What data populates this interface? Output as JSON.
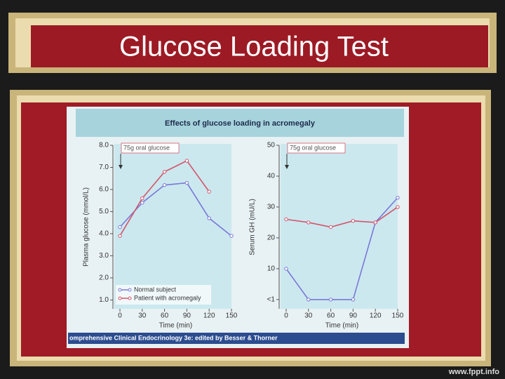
{
  "slide": {
    "title": "Glucose Loading Test",
    "figure_title": "Effects of glucose loading in acromegaly",
    "source": "omprehensive Clinical Endocrinology 3e: edited by Besser & Thorner",
    "watermark": "www.fppt.info"
  },
  "chart_data": [
    {
      "type": "line",
      "annotation": "75g oral glucose",
      "x_label": "Time (min)",
      "y_label": "Plasma glucose (mmol/L)",
      "x": [
        0,
        30,
        60,
        90,
        120,
        150
      ],
      "xlim": [
        0,
        150
      ],
      "xticks": [
        0,
        30,
        60,
        90,
        120,
        150
      ],
      "ylim": [
        0.6,
        8.0
      ],
      "yticks": [
        {
          "value": 1,
          "label": "1.0"
        },
        {
          "value": 2,
          "label": "2.0"
        },
        {
          "value": 3,
          "label": "3.0"
        },
        {
          "value": 4,
          "label": "4.0"
        },
        {
          "value": 5,
          "label": "5.0"
        },
        {
          "value": 6,
          "label": "6.0"
        },
        {
          "value": 7,
          "label": "7.0"
        },
        {
          "value": 8,
          "label": "8.0"
        }
      ],
      "legend": "lower left",
      "series": [
        {
          "name": "Normal subject",
          "color": "#7a78d6",
          "values": [
            4.3,
            5.4,
            6.2,
            6.3,
            4.7,
            3.9
          ]
        },
        {
          "name": "Patient with acromegaly",
          "color": "#d4556a",
          "values": [
            3.9,
            5.6,
            6.8,
            7.3,
            5.9,
            null
          ]
        }
      ]
    },
    {
      "type": "line",
      "annotation": "75g oral glucose",
      "x_label": "Time (min)",
      "y_label": "Serum GH (mU/L)",
      "x": [
        0,
        30,
        60,
        90,
        120,
        150
      ],
      "xlim": [
        0,
        150
      ],
      "xticks": [
        0,
        30,
        60,
        90,
        120,
        150
      ],
      "ylim": [
        -3,
        50
      ],
      "yticks": [
        {
          "value": 0,
          "label": "<1"
        },
        10,
        20,
        30,
        40,
        50
      ],
      "series": [
        {
          "color": "#7a78d6",
          "values": [
            10,
            0,
            0,
            0,
            25,
            33
          ]
        },
        {
          "color": "#d4556a",
          "values": [
            26,
            25,
            23.5,
            25.5,
            25,
            30
          ]
        }
      ]
    }
  ]
}
